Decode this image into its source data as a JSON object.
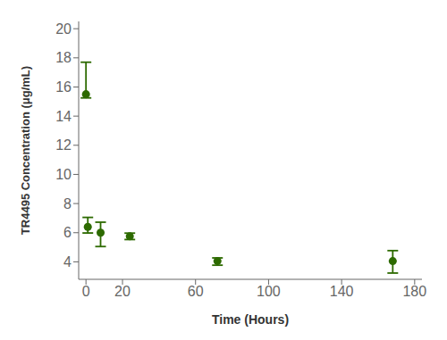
{
  "chart_data": {
    "type": "scatter",
    "x": [
      0,
      1,
      8,
      24,
      72,
      168
    ],
    "values": [
      15.5,
      6.4,
      6.0,
      5.75,
      4.05,
      4.05
    ],
    "yerr_upper": [
      2.2,
      0.65,
      0.72,
      0.22,
      0.22,
      0.72
    ],
    "yerr_lower": [
      0.25,
      0.42,
      0.95,
      0.22,
      0.28,
      0.82
    ],
    "color": "#2d6a00",
    "marker": "circle",
    "xlabel": "Time (Hours)",
    "ylabel": "TR4495 Concentration (μg/mL)",
    "xlim": [
      -4,
      184
    ],
    "ylim": [
      2.8,
      20.5
    ],
    "xticks": [
      0,
      20,
      60,
      100,
      140,
      180
    ],
    "yticks": [
      4,
      6,
      8,
      10,
      12,
      14,
      16,
      18,
      20
    ],
    "grid": false
  }
}
